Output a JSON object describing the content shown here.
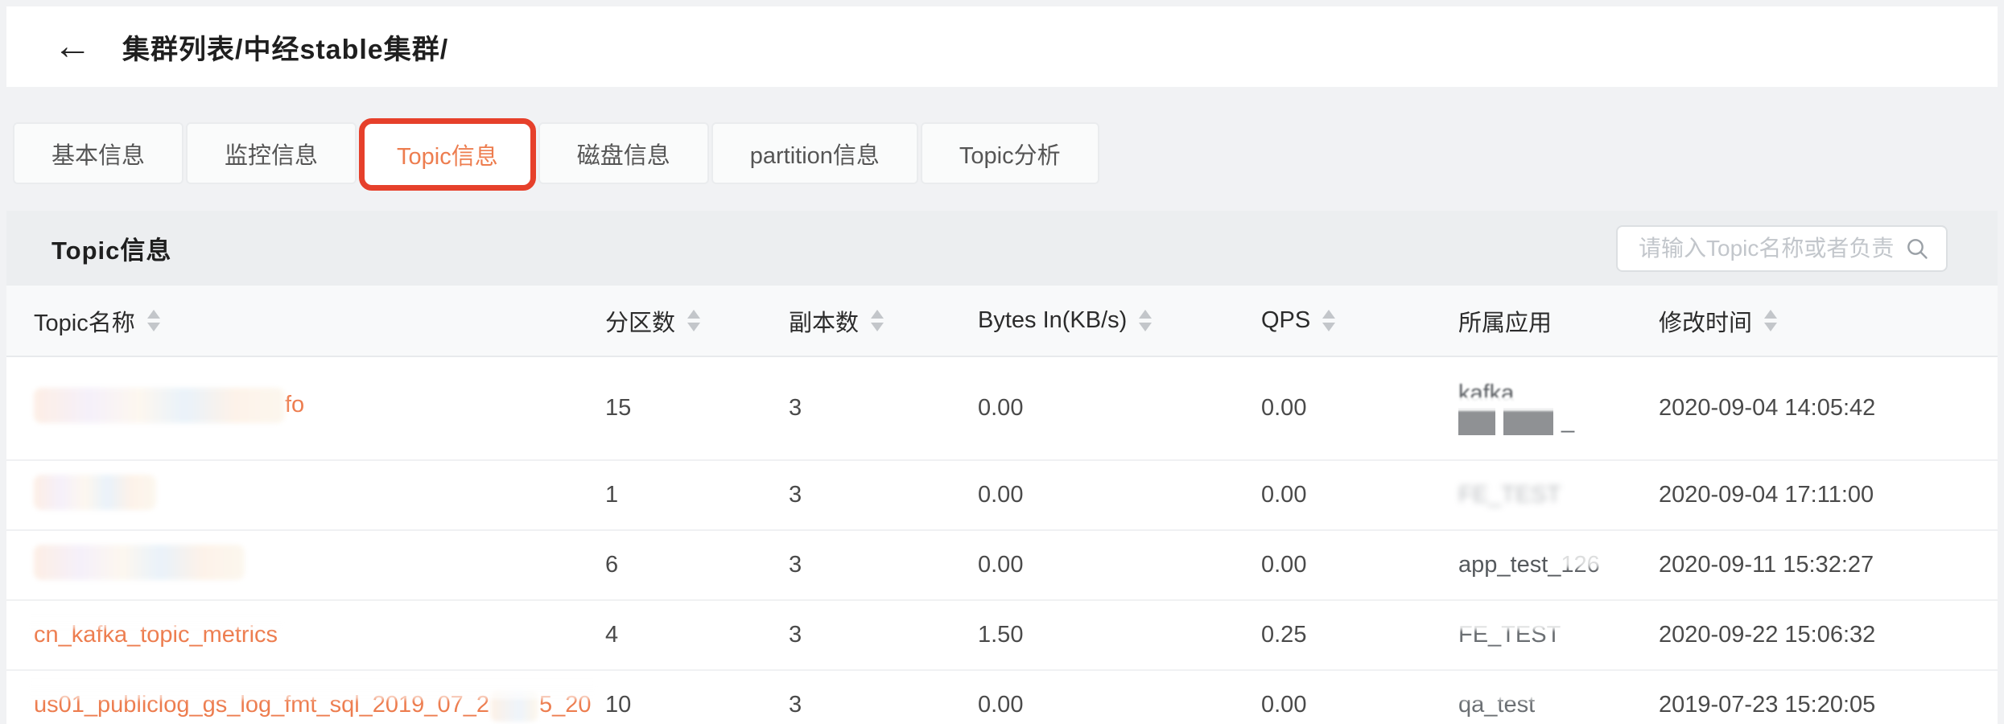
{
  "page": {
    "back_glyph": "←",
    "title": "集群列表/中经stable集群/"
  },
  "tabs": [
    {
      "key": "basic-info",
      "label": "基本信息",
      "active": false
    },
    {
      "key": "monitor-info",
      "label": "监控信息",
      "active": false
    },
    {
      "key": "topic-info",
      "label": "Topic信息",
      "active": true
    },
    {
      "key": "disk-info",
      "label": "磁盘信息",
      "active": false
    },
    {
      "key": "partition-info",
      "label": "partition信息",
      "active": false
    },
    {
      "key": "topic-analysis",
      "label": "Topic分析",
      "active": false
    }
  ],
  "panel": {
    "title": "Topic信息",
    "search_placeholder": "请输入Topic名称或者负责人"
  },
  "table": {
    "columns": [
      {
        "key": "topic-name",
        "label": "Topic名称",
        "sortable": true
      },
      {
        "key": "partitions",
        "label": "分区数",
        "sortable": true
      },
      {
        "key": "replicas",
        "label": "副本数",
        "sortable": true
      },
      {
        "key": "bytes-in",
        "label": "Bytes In(KB/s)",
        "sortable": true
      },
      {
        "key": "qps",
        "label": "QPS",
        "sortable": true
      },
      {
        "key": "owner-app",
        "label": "所属应用",
        "sortable": false
      },
      {
        "key": "modified-time",
        "label": "修改时间",
        "sortable": true
      }
    ],
    "rows": [
      {
        "topic": {
          "style": "blob-tail",
          "blob_width": 312,
          "tail": "fo"
        },
        "partitions": "15",
        "replicas": "3",
        "bytes_in": "0.00",
        "qps": "0.00",
        "app": {
          "style": "kafka-blocks",
          "line1": "kafka",
          "line2_suffix": "_"
        },
        "modified": "2020-09-04 14:05:42"
      },
      {
        "topic": {
          "style": "blob",
          "blob_width": 152,
          "tail": ""
        },
        "partitions": "1",
        "replicas": "3",
        "bytes_in": "0.00",
        "qps": "0.00",
        "app": {
          "style": "ghost",
          "text": "FE_TEST"
        },
        "modified": "2020-09-04 17:11:00"
      },
      {
        "topic": {
          "style": "blob",
          "blob_width": 262,
          "tail": ""
        },
        "partitions": "6",
        "replicas": "3",
        "bytes_in": "0.00",
        "qps": "0.00",
        "app": {
          "style": "fade",
          "text": "app_test_126"
        },
        "modified": "2020-09-11 15:32:27"
      },
      {
        "topic": {
          "style": "half",
          "text": "cn_kafka_topic_metrics"
        },
        "partitions": "4",
        "replicas": "3",
        "bytes_in": "1.50",
        "qps": "0.25",
        "app": {
          "style": "half-ghost",
          "text": "FE_TEST"
        },
        "modified": "2020-09-22 15:06:32"
      },
      {
        "topic": {
          "style": "half-split",
          "text": "us01_publiclog_gs_log_fmt_sql_2019_07_2",
          "text2": "5_20"
        },
        "partitions": "10",
        "replicas": "3",
        "bytes_in": "0.00",
        "qps": "0.00",
        "app": {
          "style": "half-ghost",
          "text": "qa_test"
        },
        "modified": "2019-07-23 15:20:05"
      }
    ]
  },
  "colors": {
    "accent_orange": "#ED7D4F",
    "annotation_red": "#E6402B"
  }
}
